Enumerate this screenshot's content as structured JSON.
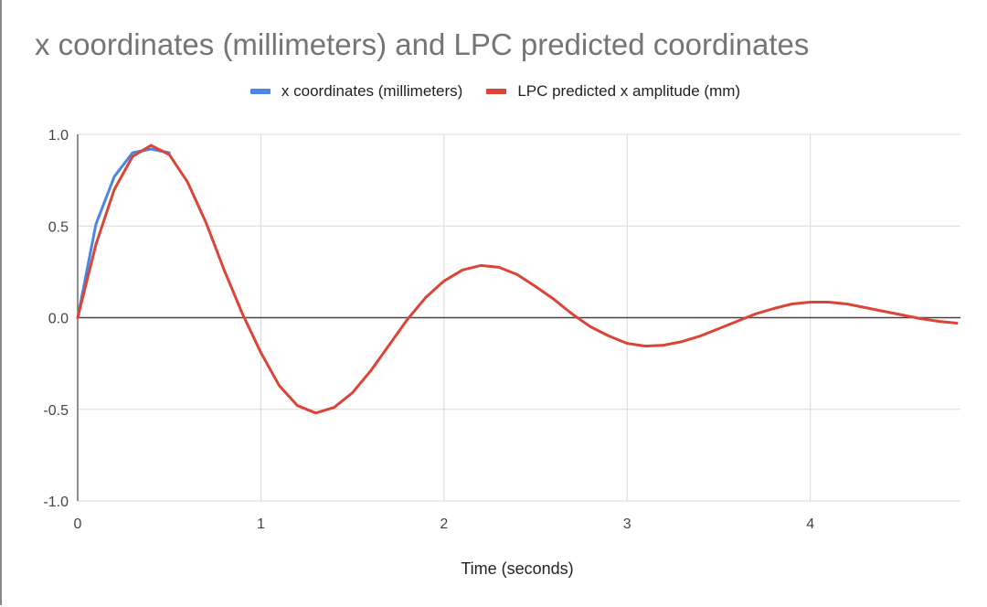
{
  "chart_data": {
    "type": "line",
    "title": "x coordinates (millimeters) and LPC predicted coordinates",
    "xlabel": "Time (seconds)",
    "ylabel": "",
    "xlim": [
      0,
      4.82
    ],
    "ylim": [
      -1.0,
      1.0
    ],
    "x_ticks": [
      0,
      1,
      2,
      3,
      4
    ],
    "x_tick_labels": [
      "0",
      "1",
      "2",
      "3",
      "4"
    ],
    "y_ticks": [
      1.0,
      0.5,
      0.0,
      -0.5,
      -1.0
    ],
    "y_tick_labels": [
      "1.0",
      "0.5",
      "0.0",
      "-0.5",
      "-1.0"
    ],
    "grid": true,
    "legend_position": "top-center",
    "series": [
      {
        "name": "x coordinates (millimeters)",
        "color": "#4a86e8",
        "x": [
          0,
          0.1,
          0.2,
          0.3,
          0.4,
          0.5
        ],
        "y": [
          0,
          0.51,
          0.77,
          0.9,
          0.92,
          0.9
        ]
      },
      {
        "name": "LPC predicted x amplitude (mm)",
        "color": "#db4437",
        "x": [
          0,
          0.1,
          0.2,
          0.3,
          0.4,
          0.5,
          0.6,
          0.7,
          0.8,
          0.9,
          1.0,
          1.1,
          1.2,
          1.3,
          1.4,
          1.5,
          1.6,
          1.7,
          1.8,
          1.9,
          2.0,
          2.1,
          2.2,
          2.3,
          2.4,
          2.5,
          2.6,
          2.7,
          2.8,
          2.9,
          3.0,
          3.1,
          3.2,
          3.3,
          3.4,
          3.5,
          3.6,
          3.7,
          3.8,
          3.9,
          4.0,
          4.1,
          4.2,
          4.3,
          4.4,
          4.5,
          4.6,
          4.7,
          4.8
        ],
        "y": [
          0,
          0.4,
          0.7,
          0.88,
          0.94,
          0.89,
          0.74,
          0.52,
          0.26,
          0.02,
          -0.19,
          -0.37,
          -0.48,
          -0.52,
          -0.49,
          -0.41,
          -0.29,
          -0.15,
          -0.01,
          0.11,
          0.2,
          0.26,
          0.285,
          0.275,
          0.235,
          0.17,
          0.1,
          0.02,
          -0.05,
          -0.1,
          -0.14,
          -0.155,
          -0.15,
          -0.13,
          -0.1,
          -0.06,
          -0.02,
          0.02,
          0.05,
          0.075,
          0.085,
          0.085,
          0.075,
          0.055,
          0.035,
          0.015,
          -0.005,
          -0.02,
          -0.03
        ]
      }
    ]
  }
}
